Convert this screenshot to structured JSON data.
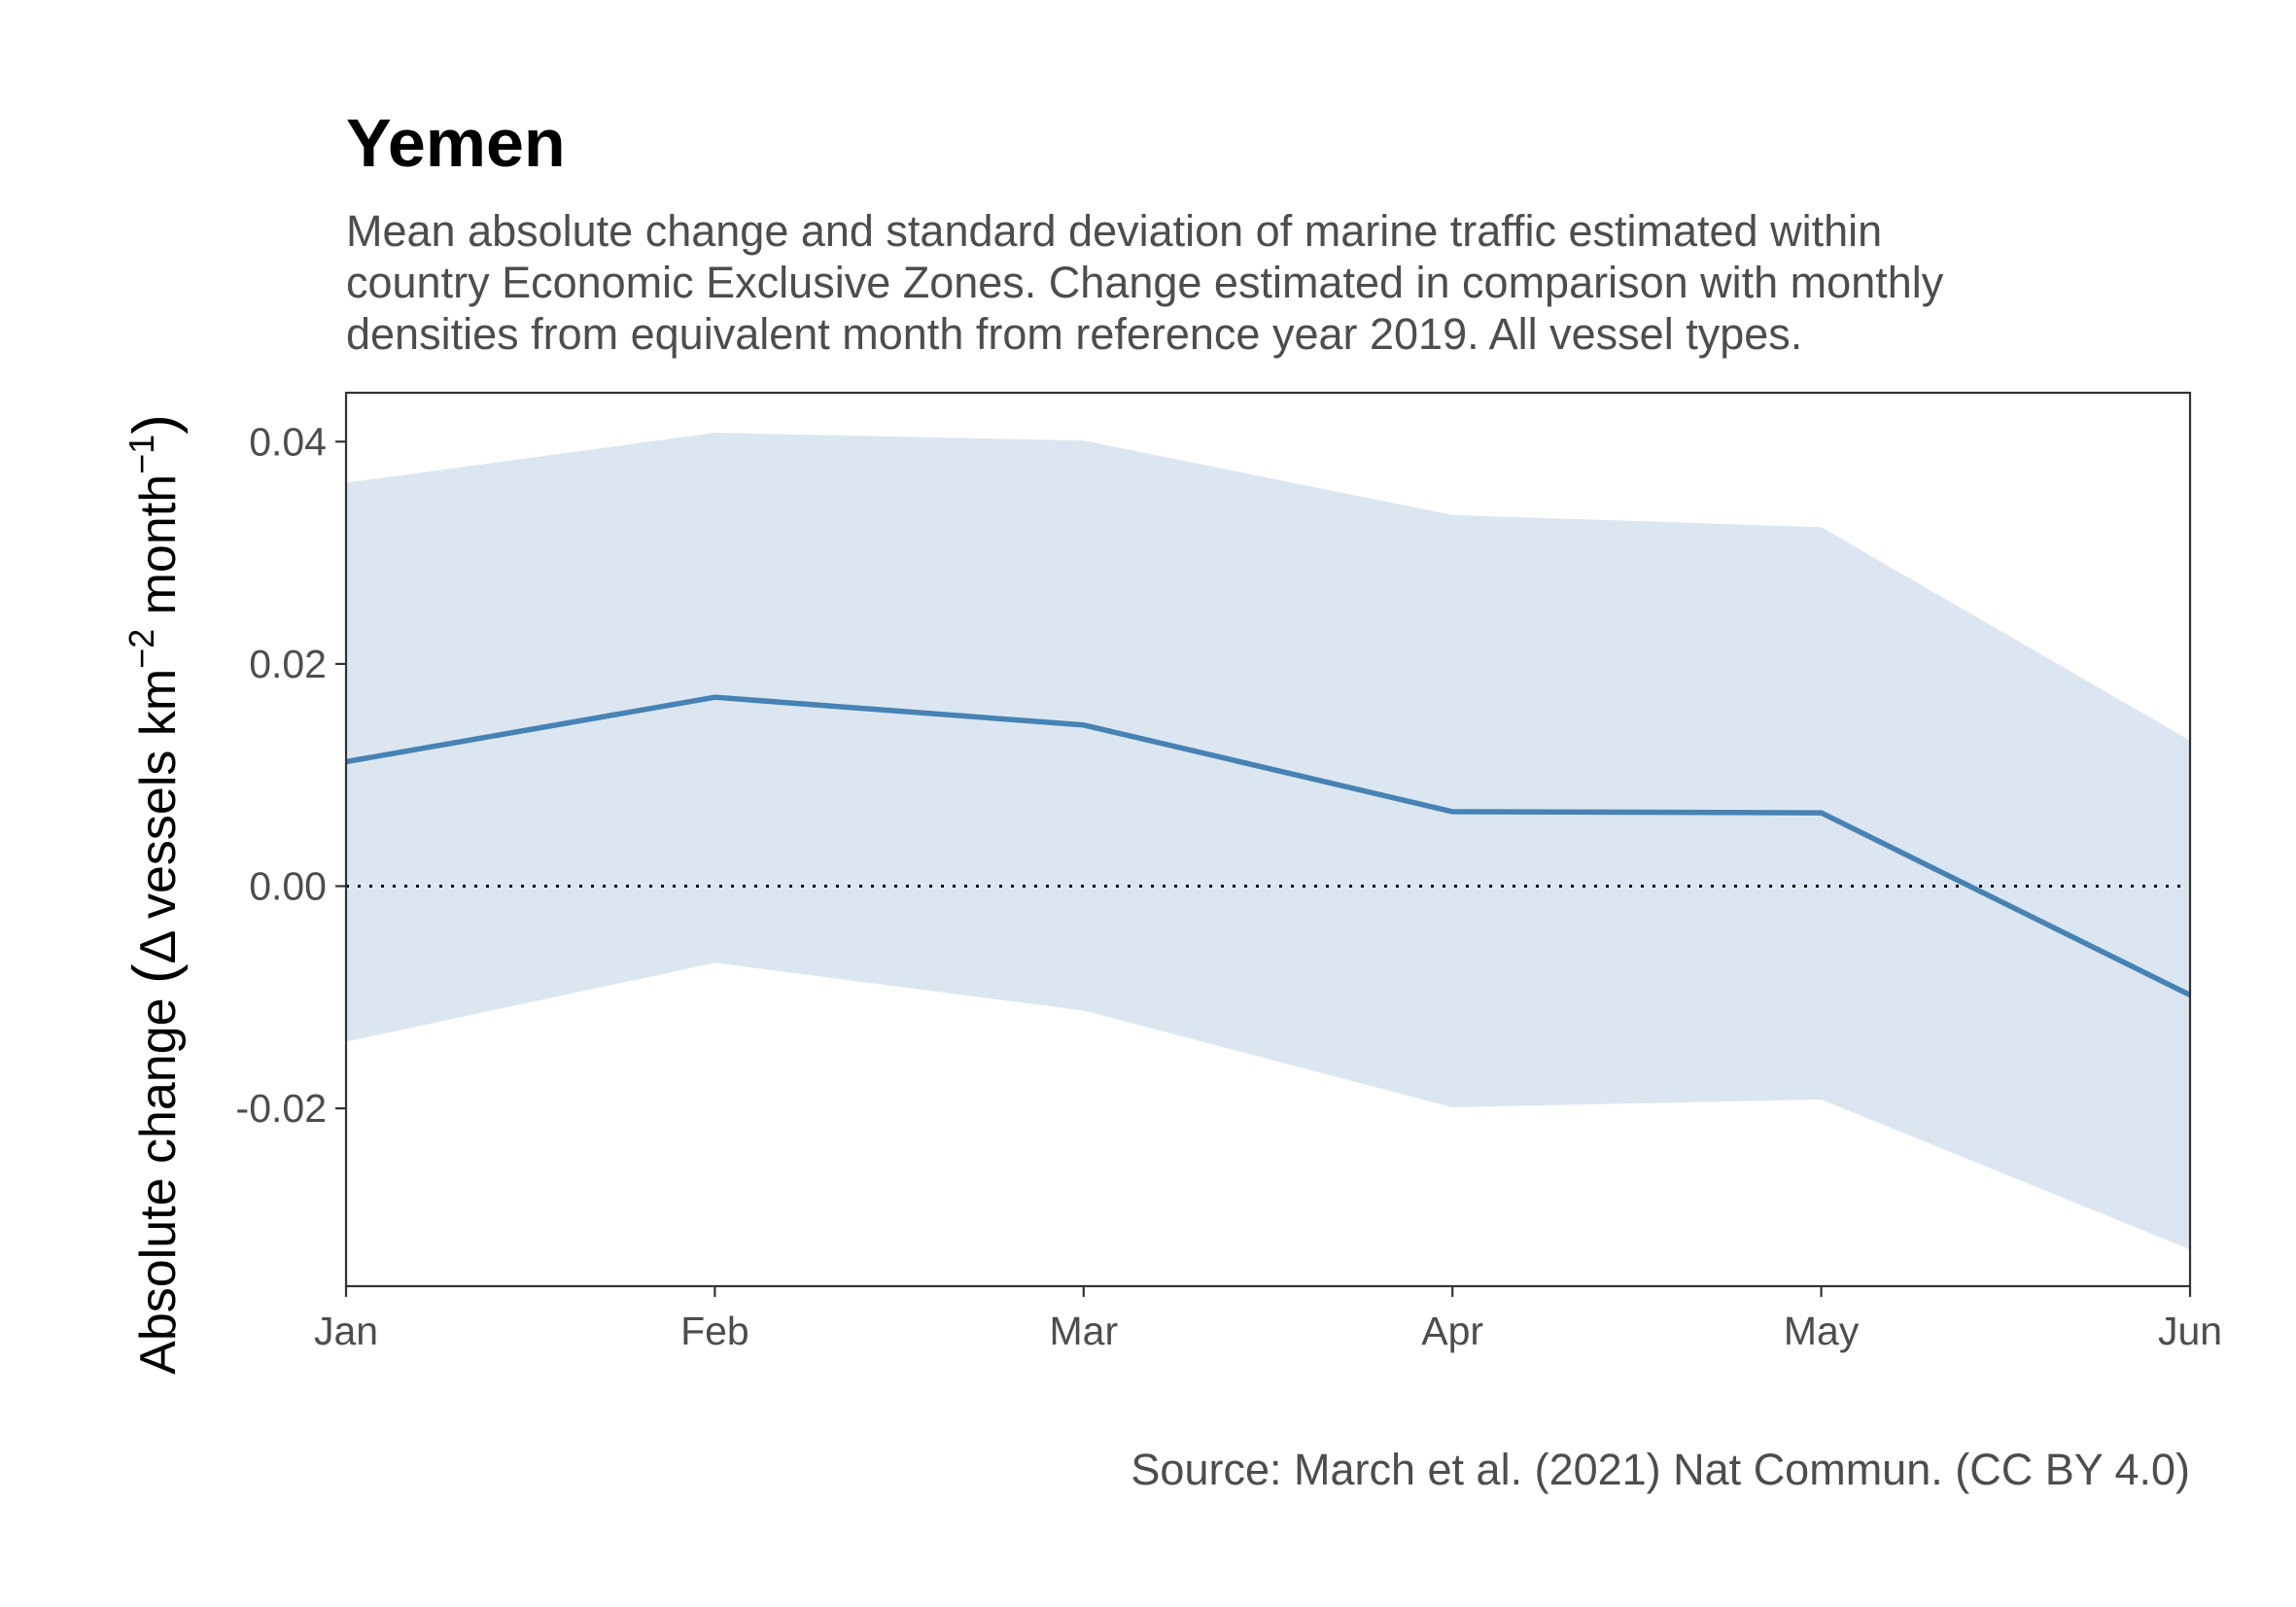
{
  "chart_data": {
    "type": "line",
    "title": "Yemen",
    "subtitle_lines": [
      "Mean absolute change and standard deviation of marine traffic estimated within",
      "country Economic Exclusive Zones. Change estimated in comparison with monthly",
      "densities from equivalent month from reference year 2019. All vessel types."
    ],
    "ylabel": {
      "prefix": "Absolute change ",
      "open_paren": "(",
      "delta": "Δ",
      "text_a": " vessels km",
      "sup_a": "−2",
      "text_b": " month",
      "sup_b": "−1",
      "close_paren": ")"
    },
    "xlabel": "",
    "caption": "Source: March et al. (2021) Nat Commun. (CC BY 4.0)",
    "categories": [
      "Jan",
      "Feb",
      "Mar",
      "Apr",
      "May",
      "Jun"
    ],
    "series": [
      {
        "values": [
          0.0112,
          0.017,
          0.0145,
          0.0067,
          0.0066,
          -0.0098
        ],
        "upper": [
          0.0363,
          0.0408,
          0.0401,
          0.0334,
          0.0323,
          0.0131
        ],
        "lower": [
          -0.014,
          -0.0069,
          -0.0112,
          -0.0199,
          -0.0192,
          -0.0327
        ],
        "color": "#4682b4",
        "ribbon_color": "#dbe6f0"
      }
    ],
    "reference_line": 0,
    "ylim": [
      -0.036,
      0.0444
    ],
    "yticks": [
      -0.02,
      0.0,
      0.02,
      0.04
    ],
    "ytick_labels": [
      "-0.02",
      "0.00",
      "0.02",
      "0.04"
    ],
    "grid": false
  }
}
